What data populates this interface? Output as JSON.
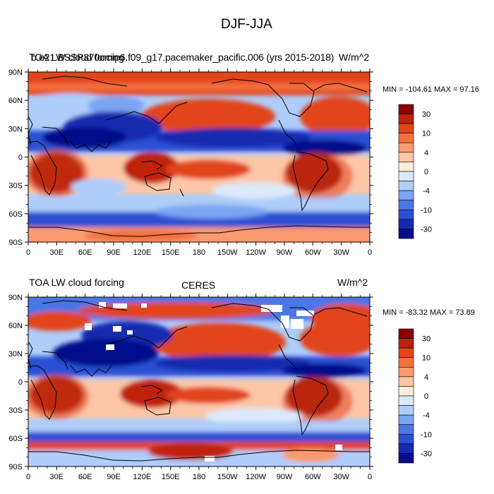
{
  "figure": {
    "title": "DJF-JJA"
  },
  "panels": [
    {
      "id": "model",
      "left_title": "TOA LW cloud forcing",
      "center_title": "b.e21.BSSP370cmip6.f09_g17.pacemaker_pacific.006 (yrs 2015-2018)",
      "right_title": "W/m^2",
      "stats_text": "MIN = -104.61 MAX =  97.16"
    },
    {
      "id": "obs",
      "left_title": "TOA LW cloud forcing",
      "center_title": "CERES",
      "right_title": "W/m^2",
      "stats_text": "MIN = -83.32 MAX =  73.89"
    }
  ],
  "chart_data": [
    {
      "type": "heatmap",
      "title": "TOA LW cloud forcing — b.e21.BSSP370cmip6.f09_g17.pacemaker_pacific.006 (yrs 2015-2018)",
      "units": "W/m^2",
      "x_ticks": [
        "0",
        "30E",
        "60E",
        "90E",
        "120E",
        "150E",
        "180",
        "150W",
        "120W",
        "90W",
        "60W",
        "30W",
        "0"
      ],
      "y_ticks": [
        "90N",
        "60N",
        "30N",
        "0",
        "30S",
        "60S",
        "90S"
      ],
      "xlim": [
        0,
        360
      ],
      "ylim": [
        -90,
        90
      ],
      "min": -104.61,
      "max": 97.16,
      "colorbar_labels": [
        "30",
        "10",
        "4",
        "0",
        "-4",
        "-10",
        "-30"
      ]
    },
    {
      "type": "heatmap",
      "title": "TOA LW cloud forcing — CERES",
      "units": "W/m^2",
      "x_ticks": [
        "0",
        "30E",
        "60E",
        "90E",
        "120E",
        "150E",
        "180",
        "150W",
        "120W",
        "90W",
        "60W",
        "30W",
        "0"
      ],
      "y_ticks": [
        "90N",
        "60N",
        "30N",
        "0",
        "30S",
        "60S",
        "90S"
      ],
      "xlim": [
        0,
        360
      ],
      "ylim": [
        -90,
        90
      ],
      "min": -83.32,
      "max": 73.89,
      "colorbar_labels": [
        "30",
        "10",
        "4",
        "0",
        "-4",
        "-10",
        "-30"
      ]
    }
  ],
  "colors": {
    "scale": [
      "#8b0000",
      "#c0200f",
      "#e2451d",
      "#f4703d",
      "#fa9a6e",
      "#fdc6a6",
      "#fbeede",
      "#dbe9fa",
      "#aecdfa",
      "#7aa5f2",
      "#4b76e6",
      "#2a4fd3",
      "#1529b0",
      "#060c8a"
    ],
    "land": "#000000"
  }
}
